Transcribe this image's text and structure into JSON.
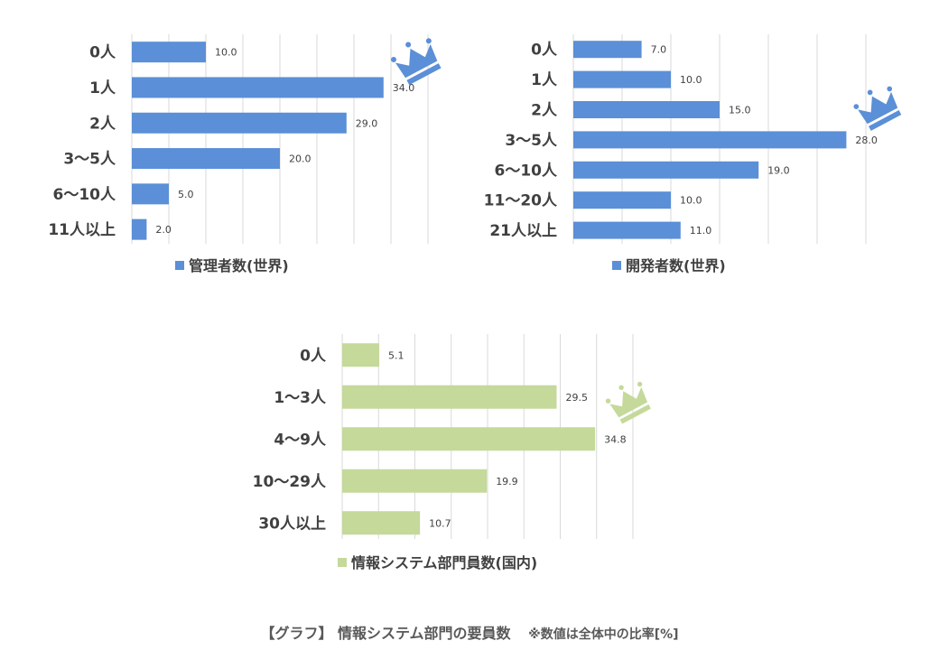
{
  "chart_data": [
    {
      "type": "bar",
      "orientation": "horizontal",
      "categories": [
        "0人",
        "1人",
        "2人",
        "3～5人",
        "6～10人",
        "11人以上"
      ],
      "series": [
        {
          "name": "管理者数(世界)",
          "values": [
            10.0,
            34.0,
            29.0,
            20.0,
            5.0,
            2.0
          ]
        }
      ],
      "color": "#5b8fd7",
      "xlim": [
        0,
        40
      ],
      "grid": true,
      "legend": "bottom",
      "crown_icon_on": "1人"
    },
    {
      "type": "bar",
      "orientation": "horizontal",
      "categories": [
        "0人",
        "1人",
        "2人",
        "3～5人",
        "6～10人",
        "11～20人",
        "21人以上"
      ],
      "series": [
        {
          "name": "開発者数(世界)",
          "values": [
            7.0,
            10.0,
            15.0,
            28.0,
            19.0,
            10.0,
            11.0
          ]
        }
      ],
      "color": "#5b8fd7",
      "xlim": [
        0,
        30
      ],
      "grid": true,
      "legend": "bottom",
      "crown_icon_on": "3～5人"
    },
    {
      "type": "bar",
      "orientation": "horizontal",
      "categories": [
        "0人",
        "1～3人",
        "4～9人",
        "10～29人",
        "30人以上"
      ],
      "series": [
        {
          "name": "情報システム部門員数(国内)",
          "values": [
            5.1,
            29.5,
            34.8,
            19.9,
            10.7
          ]
        }
      ],
      "color": "#c5d99b",
      "xlim": [
        0,
        40
      ],
      "grid": true,
      "legend": "bottom",
      "crown_icon_on": "4～9人"
    }
  ],
  "caption": {
    "main": "【グラフ】 情報システム部門の要員数",
    "note": "※数値は全体中の比率[%]"
  },
  "icons": {
    "crown": "crown-icon"
  },
  "colors": {
    "blue_crown": "#5b8fd7",
    "green_crown": "#c5d99b"
  }
}
